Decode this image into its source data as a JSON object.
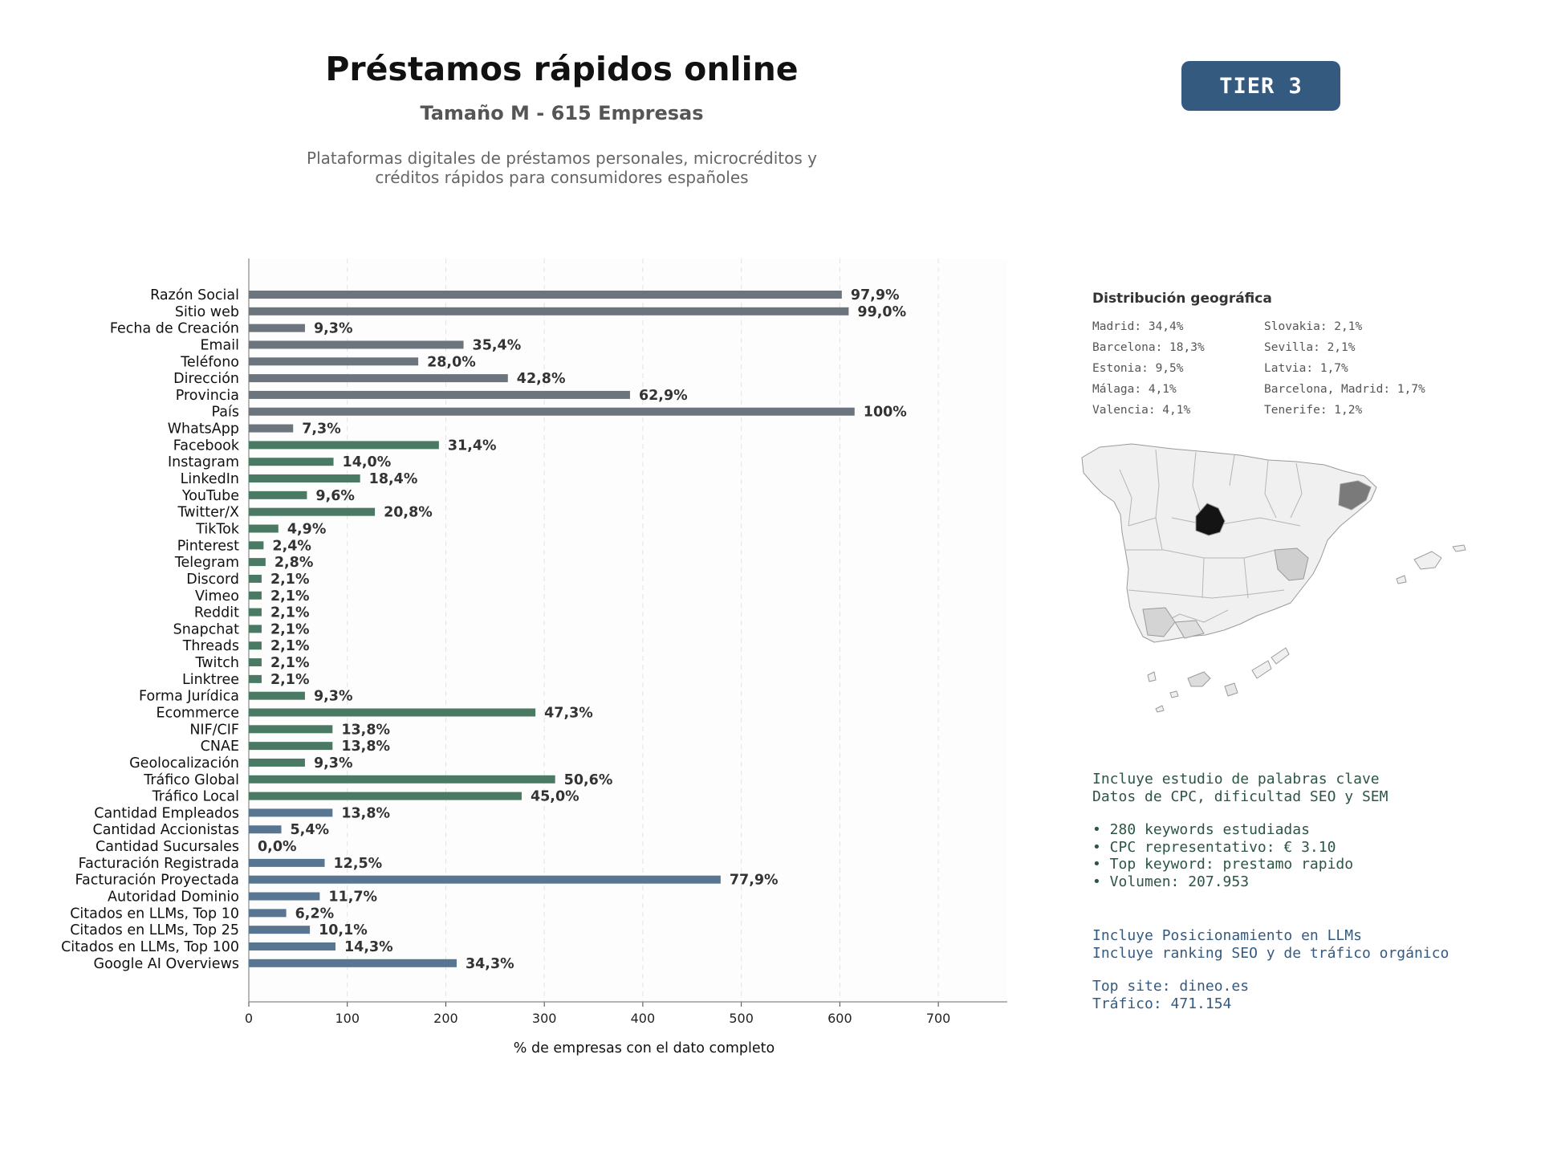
{
  "header": {
    "title": "Préstamos rápidos online",
    "subtitle": "Tamaño M - 615 Empresas",
    "description_line1": "Plataformas digitales de préstamos personales, microcréditos y",
    "description_line2": "créditos rápidos para consumidores españoles",
    "tier_badge": "TIER 3",
    "tier_color": "#355a7f"
  },
  "chart_data": {
    "type": "bar",
    "orientation": "horizontal",
    "xlabel": "% de empresas con el dato completo",
    "xlim": [
      0,
      770
    ],
    "xticks": [
      0,
      100,
      200,
      300,
      400,
      500,
      600,
      700
    ],
    "grid": "vertical dashed",
    "group_colors": {
      "basic": "#6c757d",
      "social": "#4a7a63",
      "business": "#587592"
    },
    "categories": [
      "Razón Social",
      "Sitio web",
      "Fecha de Creación",
      "Email",
      "Teléfono",
      "Dirección",
      "Provincia",
      "País",
      "WhatsApp",
      "Facebook",
      "Instagram",
      "LinkedIn",
      "YouTube",
      "Twitter/X",
      "TikTok",
      "Pinterest",
      "Telegram",
      "Discord",
      "Vimeo",
      "Reddit",
      "Snapchat",
      "Threads",
      "Twitch",
      "Linktree",
      "Forma Jurídica",
      "Ecommerce",
      "NIF/CIF",
      "CNAE",
      "Geolocalización",
      "Tráfico Global",
      "Tráfico Local",
      "Cantidad Empleados",
      "Cantidad Accionistas",
      "Cantidad Sucursales",
      "Facturación Registrada",
      "Facturación Proyectada",
      "Autoridad Dominio",
      "Citados en LLMs, Top 10",
      "Citados en LLMs, Top 25",
      "Citados en LLMs, Top 100",
      "Google AI Overviews"
    ],
    "values": [
      602,
      609,
      57,
      218,
      172,
      263,
      387,
      615,
      45,
      193,
      86,
      113,
      59,
      128,
      30,
      15,
      17,
      13,
      13,
      13,
      13,
      13,
      13,
      13,
      57,
      291,
      85,
      85,
      57,
      311,
      277,
      85,
      33,
      0,
      77,
      479,
      72,
      38,
      62,
      88,
      211
    ],
    "labels": [
      "97,9%",
      "99,0%",
      "9,3%",
      "35,4%",
      "28,0%",
      "42,8%",
      "62,9%",
      "100%",
      "7,3%",
      "31,4%",
      "14,0%",
      "18,4%",
      "9,6%",
      "20,8%",
      "4,9%",
      "2,4%",
      "2,8%",
      "2,1%",
      "2,1%",
      "2,1%",
      "2,1%",
      "2,1%",
      "2,1%",
      "2,1%",
      "9,3%",
      "47,3%",
      "13,8%",
      "13,8%",
      "9,3%",
      "50,6%",
      "45,0%",
      "13,8%",
      "5,4%",
      "0,0%",
      "12,5%",
      "77,9%",
      "11,7%",
      "6,2%",
      "10,1%",
      "14,3%",
      "34,3%"
    ],
    "groups": [
      "basic",
      "basic",
      "basic",
      "basic",
      "basic",
      "basic",
      "basic",
      "basic",
      "basic",
      "social",
      "social",
      "social",
      "social",
      "social",
      "social",
      "social",
      "social",
      "social",
      "social",
      "social",
      "social",
      "social",
      "social",
      "social",
      "social",
      "social",
      "social",
      "social",
      "social",
      "social",
      "social",
      "business",
      "business",
      "business",
      "business",
      "business",
      "business",
      "business",
      "business",
      "business",
      "business"
    ]
  },
  "geo": {
    "title": "Distribución geográfica",
    "entries": [
      "Madrid: 34,4%",
      "Slovakia: 2,1%",
      "Barcelona: 18,3%",
      "Sevilla: 2,1%",
      "Estonia: 9,5%",
      "Latvia: 1,7%",
      "Málaga: 4,1%",
      "Barcelona, Madrid: 1,7%",
      "Valencia: 4,1%",
      "Tenerife: 1,2%"
    ]
  },
  "keywords": {
    "line1": "Incluye estudio de palabras clave",
    "line2": "Datos de CPC, dificultad SEO y SEM",
    "bullet1": "• 280 keywords estudiadas",
    "bullet2": "• CPC representativo: € 3.10",
    "bullet3": "• Top keyword: prestamo rapido",
    "bullet4": "• Volumen: 207.953"
  },
  "llm": {
    "line1": "Incluye Posicionamiento en LLMs",
    "line2": "Incluye ranking SEO y de tráfico orgánico",
    "top_site": "Top site: dineo.es",
    "traffic": "Tráfico: 471.154"
  }
}
